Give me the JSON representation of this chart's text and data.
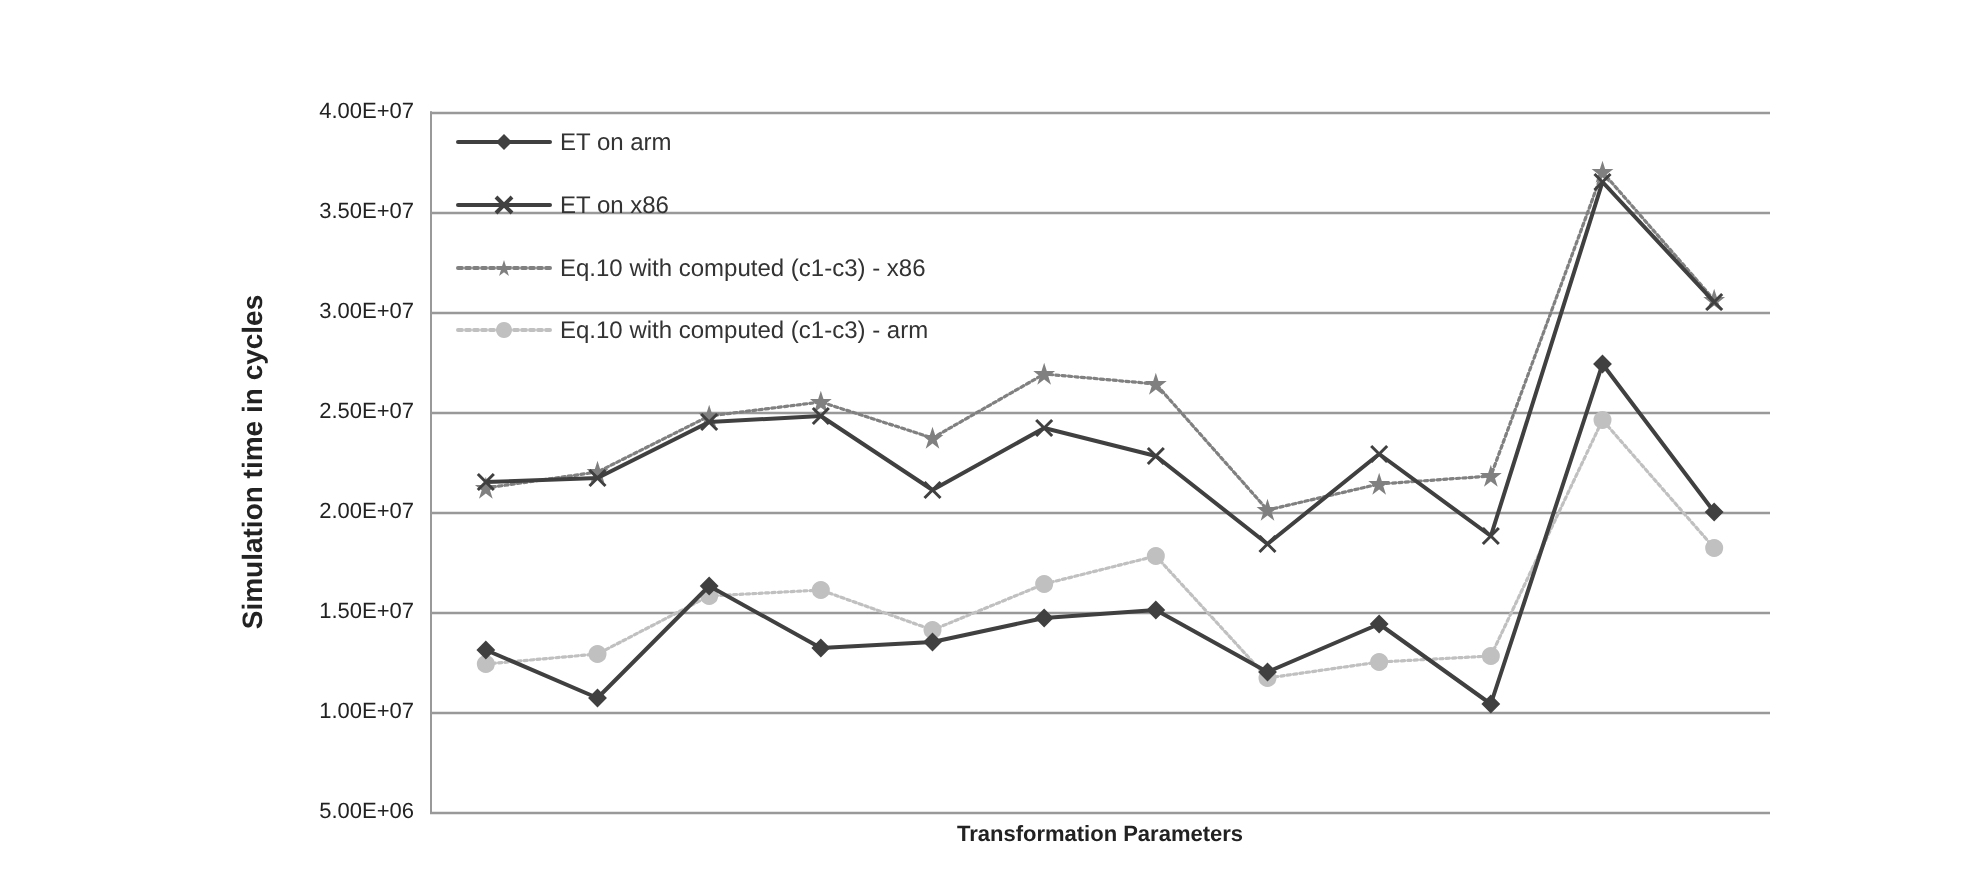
{
  "chart_data": {
    "type": "line",
    "xlabel": "Transformation Parameters",
    "ylabel": "Simulation time in cycles",
    "categories": [
      null,
      null,
      null,
      null,
      null,
      null,
      null,
      null,
      null,
      null,
      null,
      null
    ],
    "series": [
      {
        "name": "ET on arm",
        "color": "#404040",
        "marker": "diamond",
        "line_style": "solid",
        "values": [
          13100000,
          10700000,
          16300000,
          13200000,
          13500000,
          14700000,
          15100000,
          12000000,
          14400000,
          10400000,
          27400000,
          20000000
        ]
      },
      {
        "name": "ET on x86",
        "color": "#404040",
        "marker": "cross",
        "line_style": "solid",
        "values": [
          21500000,
          21700000,
          24500000,
          24800000,
          21100000,
          24200000,
          22800000,
          18400000,
          22900000,
          18800000,
          36500000,
          30500000
        ]
      },
      {
        "name": "Eq.10 with computed (c1-c3) - x86",
        "color": "#808080",
        "marker": "star",
        "line_style": "dotted",
        "values": [
          21200000,
          22000000,
          24800000,
          25500000,
          23700000,
          26900000,
          26400000,
          20100000,
          21400000,
          21800000,
          37000000,
          30600000
        ]
      },
      {
        "name": "Eq.10 with computed (c1-c3) - arm",
        "color": "#c0c0c0",
        "marker": "circle",
        "line_style": "dotted",
        "values": [
          12400000,
          12900000,
          15800000,
          16100000,
          14100000,
          16400000,
          17800000,
          11700000,
          12500000,
          12800000,
          24600000,
          18200000
        ]
      }
    ],
    "ylim": [
      5000000,
      40000000
    ],
    "yticks": [
      {
        "value": 5000000,
        "label": "5.00E+06"
      },
      {
        "value": 10000000,
        "label": "1.00E+07"
      },
      {
        "value": 15000000,
        "label": "1.50E+07"
      },
      {
        "value": 20000000,
        "label": "2.00E+07"
      },
      {
        "value": 25000000,
        "label": "2.50E+07"
      },
      {
        "value": 30000000,
        "label": "3.00E+07"
      },
      {
        "value": 35000000,
        "label": "3.50E+07"
      },
      {
        "value": 40000000,
        "label": "4.00E+07"
      }
    ],
    "grid": "y",
    "legend": "top left",
    "tick_labels": "y"
  }
}
